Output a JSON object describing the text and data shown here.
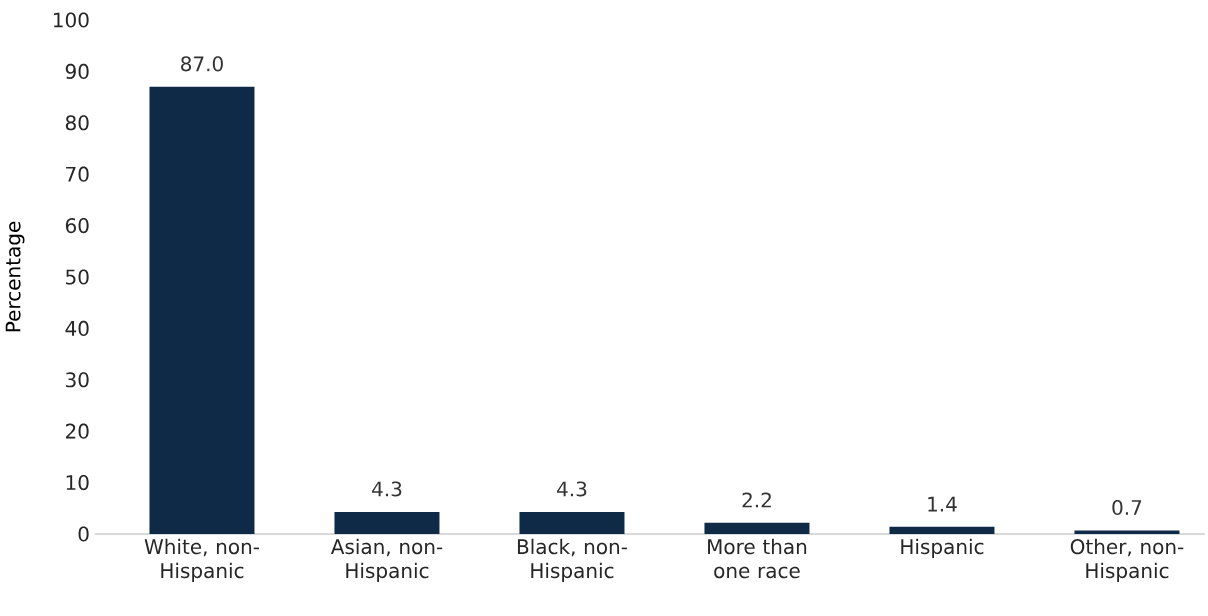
{
  "chart_data": {
    "type": "bar",
    "ylabel": "Percentage",
    "categories": [
      "White, non-Hispanic",
      "Asian, non-Hispanic",
      "Black, non-Hispanic",
      "More than one race",
      "Hispanic",
      "Other, non-Hispanic"
    ],
    "values": [
      87.0,
      4.3,
      4.3,
      2.2,
      1.4,
      0.7
    ],
    "color": "#0e2a47",
    "ylim": [
      0,
      100
    ],
    "yticks": [
      0,
      10,
      20,
      30,
      40,
      50,
      60,
      70,
      80,
      90,
      100
    ],
    "value_labels": [
      "87.0",
      "4.3",
      "4.3",
      "2.2",
      "1.4",
      "0.7"
    ],
    "grid": false
  }
}
